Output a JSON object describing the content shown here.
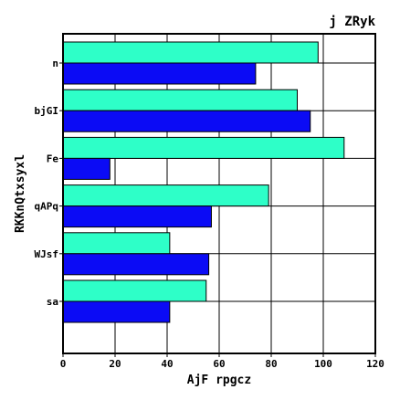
{
  "chart_data": {
    "type": "bar",
    "orientation": "horizontal",
    "title": "j ZRyk",
    "xlabel": "AjF rpgcz",
    "ylabel": "RKKnQtxsyxl",
    "categories": [
      "n",
      "bjGI",
      "Fe",
      "qAPq",
      "WJsf",
      "sa"
    ],
    "series": [
      {
        "color": "#2effc8",
        "values": [
          98,
          90,
          108,
          79,
          41,
          55
        ]
      },
      {
        "color": "#0b0bf5",
        "values": [
          74,
          95,
          18,
          57,
          56,
          41
        ]
      }
    ],
    "xlim": [
      0,
      120
    ],
    "xticks": [
      "0",
      "20",
      "40",
      "60",
      "80",
      "100",
      "120"
    ],
    "grid": true,
    "legend": "none"
  }
}
